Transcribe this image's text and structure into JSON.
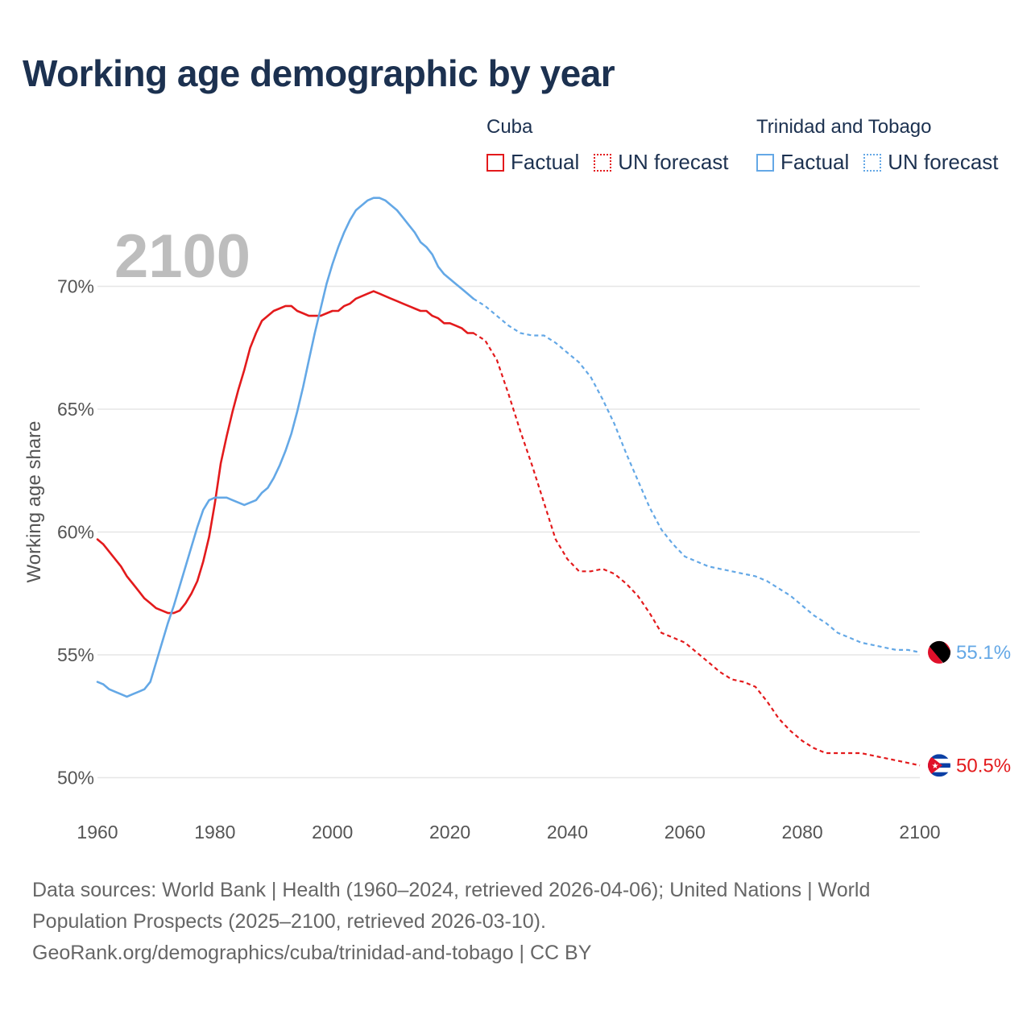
{
  "chart_data": {
    "type": "line",
    "title": "Working age demographic by year",
    "ylabel": "Working age share",
    "xlabel": "",
    "year_display": "2100",
    "xlim": [
      1960,
      2100
    ],
    "ylim": [
      49,
      73
    ],
    "x_ticks": [
      1960,
      1980,
      2000,
      2020,
      2040,
      2060,
      2080,
      2100
    ],
    "y_ticks": [
      50,
      55,
      60,
      65,
      70
    ],
    "y_tick_labels": [
      "50%",
      "55%",
      "60%",
      "65%",
      "70%"
    ],
    "legend": {
      "groups": [
        {
          "name": "Cuba",
          "factual": "Factual",
          "forecast": "UN forecast",
          "color": "#e31a1c"
        },
        {
          "name": "Trinidad and Tobago",
          "factual": "Factual",
          "forecast": "UN forecast",
          "color": "#64a8e6"
        }
      ]
    },
    "series": [
      {
        "name": "Cuba",
        "color": "#e31a1c",
        "end_label": "50.5%",
        "factual": {
          "x": [
            1960,
            1961,
            1962,
            1963,
            1964,
            1965,
            1966,
            1967,
            1968,
            1969,
            1970,
            1971,
            1972,
            1973,
            1974,
            1975,
            1976,
            1977,
            1978,
            1979,
            1980,
            1981,
            1982,
            1983,
            1984,
            1985,
            1986,
            1987,
            1988,
            1989,
            1990,
            1991,
            1992,
            1993,
            1994,
            1995,
            1996,
            1997,
            1998,
            1999,
            2000,
            2001,
            2002,
            2003,
            2004,
            2005,
            2006,
            2007,
            2008,
            2009,
            2010,
            2011,
            2012,
            2013,
            2014,
            2015,
            2016,
            2017,
            2018,
            2019,
            2020,
            2021,
            2022,
            2023,
            2024
          ],
          "y": [
            59.7,
            59.5,
            59.2,
            58.9,
            58.6,
            58.2,
            57.9,
            57.6,
            57.3,
            57.1,
            56.9,
            56.8,
            56.7,
            56.7,
            56.8,
            57.1,
            57.5,
            58.0,
            58.8,
            59.8,
            61.2,
            62.8,
            63.9,
            64.9,
            65.8,
            66.6,
            67.5,
            68.1,
            68.6,
            68.8,
            69.0,
            69.1,
            69.2,
            69.2,
            69.0,
            68.9,
            68.8,
            68.8,
            68.8,
            68.9,
            69.0,
            69.0,
            69.2,
            69.3,
            69.5,
            69.6,
            69.7,
            69.8,
            69.7,
            69.6,
            69.5,
            69.4,
            69.3,
            69.2,
            69.1,
            69.0,
            69.0,
            68.8,
            68.7,
            68.5,
            68.5,
            68.4,
            68.3,
            68.1,
            68.1
          ]
        },
        "forecast": {
          "x": [
            2024,
            2026,
            2028,
            2030,
            2032,
            2034,
            2036,
            2038,
            2040,
            2042,
            2044,
            2046,
            2048,
            2050,
            2052,
            2054,
            2056,
            2058,
            2060,
            2062,
            2064,
            2066,
            2068,
            2070,
            2072,
            2074,
            2076,
            2078,
            2080,
            2082,
            2084,
            2086,
            2088,
            2090,
            2092,
            2094,
            2096,
            2098,
            2100
          ],
          "y": [
            68.1,
            67.8,
            67.0,
            65.6,
            64.1,
            62.7,
            61.2,
            59.7,
            58.9,
            58.4,
            58.4,
            58.5,
            58.3,
            57.9,
            57.4,
            56.7,
            55.9,
            55.7,
            55.5,
            55.1,
            54.7,
            54.3,
            54.0,
            53.9,
            53.7,
            53.1,
            52.4,
            51.9,
            51.5,
            51.2,
            51.0,
            51.0,
            51.0,
            51.0,
            50.9,
            50.8,
            50.7,
            50.6,
            50.5
          ]
        }
      },
      {
        "name": "Trinidad and Tobago",
        "color": "#64a8e6",
        "end_label": "55.1%",
        "factual": {
          "x": [
            1960,
            1961,
            1962,
            1963,
            1964,
            1965,
            1966,
            1967,
            1968,
            1969,
            1970,
            1971,
            1972,
            1973,
            1974,
            1975,
            1976,
            1977,
            1978,
            1979,
            1980,
            1981,
            1982,
            1983,
            1984,
            1985,
            1986,
            1987,
            1988,
            1989,
            1990,
            1991,
            1992,
            1993,
            1994,
            1995,
            1996,
            1997,
            1998,
            1999,
            2000,
            2001,
            2002,
            2003,
            2004,
            2005,
            2006,
            2007,
            2008,
            2009,
            2010,
            2011,
            2012,
            2013,
            2014,
            2015,
            2016,
            2017,
            2018,
            2019,
            2020,
            2021,
            2022,
            2023,
            2024
          ],
          "y": [
            53.9,
            53.8,
            53.6,
            53.5,
            53.4,
            53.3,
            53.4,
            53.5,
            53.6,
            53.9,
            54.7,
            55.5,
            56.3,
            57.0,
            57.8,
            58.6,
            59.4,
            60.2,
            60.9,
            61.3,
            61.4,
            61.4,
            61.4,
            61.3,
            61.2,
            61.1,
            61.2,
            61.3,
            61.6,
            61.8,
            62.2,
            62.7,
            63.3,
            64.0,
            64.9,
            65.9,
            67.0,
            68.1,
            69.1,
            70.1,
            70.9,
            71.6,
            72.2,
            72.7,
            73.1,
            73.3,
            73.5,
            73.6,
            73.6,
            73.5,
            73.3,
            73.1,
            72.8,
            72.5,
            72.2,
            71.8,
            71.6,
            71.3,
            70.8,
            70.5,
            70.3,
            70.1,
            69.9,
            69.7,
            69.5
          ]
        },
        "forecast": {
          "x": [
            2024,
            2026,
            2028,
            2030,
            2032,
            2034,
            2036,
            2038,
            2040,
            2042,
            2044,
            2046,
            2048,
            2050,
            2052,
            2054,
            2056,
            2058,
            2060,
            2062,
            2064,
            2066,
            2068,
            2070,
            2072,
            2074,
            2076,
            2078,
            2080,
            2082,
            2084,
            2086,
            2088,
            2090,
            2092,
            2094,
            2096,
            2098,
            2100
          ],
          "y": [
            69.5,
            69.2,
            68.8,
            68.4,
            68.1,
            68.0,
            68.0,
            67.7,
            67.3,
            66.9,
            66.3,
            65.4,
            64.4,
            63.2,
            62.1,
            61.0,
            60.1,
            59.5,
            59.0,
            58.8,
            58.6,
            58.5,
            58.4,
            58.3,
            58.2,
            58.0,
            57.7,
            57.4,
            57.0,
            56.6,
            56.3,
            55.9,
            55.7,
            55.5,
            55.4,
            55.3,
            55.2,
            55.2,
            55.1
          ]
        }
      }
    ]
  },
  "footer": {
    "line1": "Data sources: World Bank | Health (1960–2024, retrieved 2026-04-06); United Nations | World",
    "line2": "Population Prospects (2025–2100, retrieved 2026-03-10).",
    "line3": "GeoRank.org/demographics/cuba/trinidad-and-tobago | CC BY"
  }
}
